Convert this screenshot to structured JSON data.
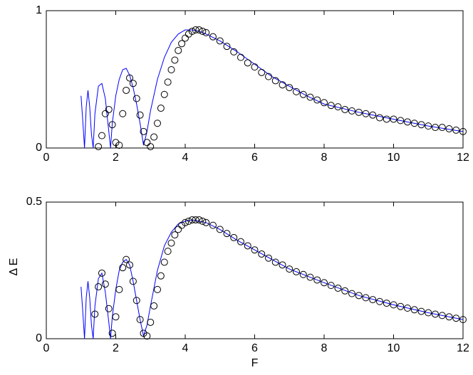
{
  "chart_data": [
    {
      "type": "line",
      "xlim": [
        0,
        12
      ],
      "xticks": [
        0,
        2,
        4,
        6,
        8,
        10,
        12
      ],
      "ylim": [
        0,
        1
      ],
      "yticks": [
        0,
        1
      ],
      "grid": false,
      "series": [
        {
          "color": "#0000ff",
          "style": "line",
          "x": [
            1.0,
            1.05,
            1.1,
            1.15,
            1.2,
            1.25,
            1.3,
            1.35,
            1.4,
            1.5,
            1.6,
            1.7,
            1.8,
            1.85,
            1.9,
            2.0,
            2.1,
            2.2,
            2.3,
            2.4,
            2.5,
            2.6,
            2.7,
            2.8,
            2.9,
            3.0,
            3.2,
            3.4,
            3.6,
            3.8,
            4.0,
            4.2,
            4.4,
            4.6,
            5.0,
            5.5,
            6.0,
            6.5,
            7.0,
            7.5,
            8.0,
            9.0,
            10,
            11,
            12
          ],
          "values": [
            0.38,
            0.2,
            0.0,
            0.3,
            0.42,
            0.3,
            0.1,
            0.0,
            0.25,
            0.45,
            0.47,
            0.36,
            0.12,
            0.0,
            0.18,
            0.38,
            0.5,
            0.57,
            0.58,
            0.53,
            0.44,
            0.32,
            0.18,
            0.02,
            0.12,
            0.27,
            0.5,
            0.66,
            0.77,
            0.83,
            0.86,
            0.86,
            0.85,
            0.83,
            0.78,
            0.7,
            0.61,
            0.52,
            0.45,
            0.38,
            0.32,
            0.26,
            0.21,
            0.16,
            0.12
          ]
        },
        {
          "color": "#000000",
          "style": "markers",
          "x": [
            1.5,
            1.6,
            1.7,
            1.8,
            1.9,
            2.0,
            2.1,
            2.2,
            2.3,
            2.4,
            2.5,
            2.6,
            2.7,
            2.8,
            2.9,
            3.0,
            3.1,
            3.2,
            3.3,
            3.4,
            3.5,
            3.6,
            3.7,
            3.8,
            3.9,
            4.0,
            4.1,
            4.2,
            4.3,
            4.4,
            4.5,
            4.6,
            4.8,
            5.0,
            5.2,
            5.4,
            5.6,
            5.8,
            6.0,
            6.2,
            6.4,
            6.6,
            6.8,
            7.0,
            7.2,
            7.4,
            7.6,
            7.8,
            8.0,
            8.2,
            8.4,
            8.6,
            8.8,
            9.0,
            9.2,
            9.4,
            9.6,
            9.8,
            10.0,
            10.2,
            10.4,
            10.6,
            10.8,
            11.0,
            11.2,
            11.4,
            11.6,
            11.8,
            12.0
          ],
          "values": [
            0.01,
            0.09,
            0.25,
            0.28,
            0.17,
            0.04,
            0.02,
            0.25,
            0.42,
            0.51,
            0.47,
            0.36,
            0.24,
            0.12,
            0.04,
            0.01,
            0.08,
            0.18,
            0.29,
            0.39,
            0.48,
            0.57,
            0.64,
            0.71,
            0.76,
            0.8,
            0.83,
            0.85,
            0.86,
            0.86,
            0.85,
            0.84,
            0.81,
            0.78,
            0.74,
            0.7,
            0.66,
            0.62,
            0.59,
            0.55,
            0.52,
            0.49,
            0.46,
            0.44,
            0.41,
            0.39,
            0.37,
            0.35,
            0.33,
            0.31,
            0.3,
            0.28,
            0.27,
            0.26,
            0.25,
            0.24,
            0.22,
            0.21,
            0.21,
            0.2,
            0.19,
            0.18,
            0.17,
            0.16,
            0.15,
            0.15,
            0.14,
            0.13,
            0.12
          ]
        }
      ]
    },
    {
      "type": "line",
      "xlabel": "F",
      "ylabel": "Δ E",
      "xlim": [
        0,
        12
      ],
      "xticks": [
        0,
        2,
        4,
        6,
        8,
        10,
        12
      ],
      "ylim": [
        0,
        0.5
      ],
      "yticks": [
        0,
        0.5
      ],
      "grid": false,
      "series": [
        {
          "color": "#0000ff",
          "style": "line",
          "x": [
            1.0,
            1.05,
            1.1,
            1.15,
            1.2,
            1.25,
            1.3,
            1.35,
            1.4,
            1.5,
            1.6,
            1.7,
            1.8,
            1.85,
            1.9,
            2.0,
            2.1,
            2.2,
            2.3,
            2.4,
            2.5,
            2.6,
            2.7,
            2.8,
            2.9,
            3.0,
            3.2,
            3.4,
            3.6,
            3.8,
            4.0,
            4.2,
            4.4,
            4.6,
            5.0,
            5.5,
            6.0,
            6.5,
            7.0,
            7.5,
            8.0,
            9.0,
            10,
            11,
            12
          ],
          "values": [
            0.19,
            0.1,
            0.0,
            0.15,
            0.21,
            0.15,
            0.05,
            0.0,
            0.12,
            0.22,
            0.24,
            0.17,
            0.06,
            0.0,
            0.08,
            0.18,
            0.25,
            0.28,
            0.29,
            0.27,
            0.21,
            0.14,
            0.07,
            0.01,
            0.05,
            0.12,
            0.25,
            0.34,
            0.39,
            0.42,
            0.43,
            0.435,
            0.43,
            0.425,
            0.4,
            0.36,
            0.325,
            0.29,
            0.255,
            0.23,
            0.205,
            0.158,
            0.124,
            0.095,
            0.07
          ]
        },
        {
          "color": "#000000",
          "style": "markers",
          "x": [
            1.4,
            1.5,
            1.6,
            1.7,
            1.8,
            1.9,
            2.0,
            2.1,
            2.2,
            2.3,
            2.4,
            2.5,
            2.6,
            2.7,
            2.8,
            2.9,
            3.0,
            3.1,
            3.2,
            3.3,
            3.4,
            3.5,
            3.6,
            3.7,
            3.8,
            3.9,
            4.0,
            4.1,
            4.2,
            4.3,
            4.4,
            4.5,
            4.6,
            4.8,
            5.0,
            5.2,
            5.4,
            5.6,
            5.8,
            6.0,
            6.2,
            6.4,
            6.6,
            6.8,
            7.0,
            7.2,
            7.4,
            7.6,
            7.8,
            8.0,
            8.2,
            8.4,
            8.6,
            8.8,
            9.0,
            9.2,
            9.4,
            9.6,
            9.8,
            10.0,
            10.2,
            10.4,
            10.6,
            10.8,
            11.0,
            11.2,
            11.4,
            11.6,
            11.8,
            12.0
          ],
          "values": [
            0.09,
            0.19,
            0.24,
            0.2,
            0.11,
            0.02,
            0.08,
            0.18,
            0.26,
            0.29,
            0.27,
            0.21,
            0.14,
            0.07,
            0.02,
            0.01,
            0.06,
            0.12,
            0.18,
            0.23,
            0.28,
            0.32,
            0.35,
            0.38,
            0.4,
            0.415,
            0.425,
            0.43,
            0.435,
            0.435,
            0.435,
            0.43,
            0.425,
            0.415,
            0.4,
            0.385,
            0.37,
            0.355,
            0.34,
            0.325,
            0.31,
            0.295,
            0.28,
            0.27,
            0.255,
            0.245,
            0.235,
            0.225,
            0.215,
            0.205,
            0.195,
            0.185,
            0.175,
            0.165,
            0.158,
            0.15,
            0.143,
            0.136,
            0.13,
            0.124,
            0.118,
            0.112,
            0.106,
            0.1,
            0.095,
            0.09,
            0.085,
            0.08,
            0.075,
            0.07
          ]
        }
      ]
    }
  ]
}
